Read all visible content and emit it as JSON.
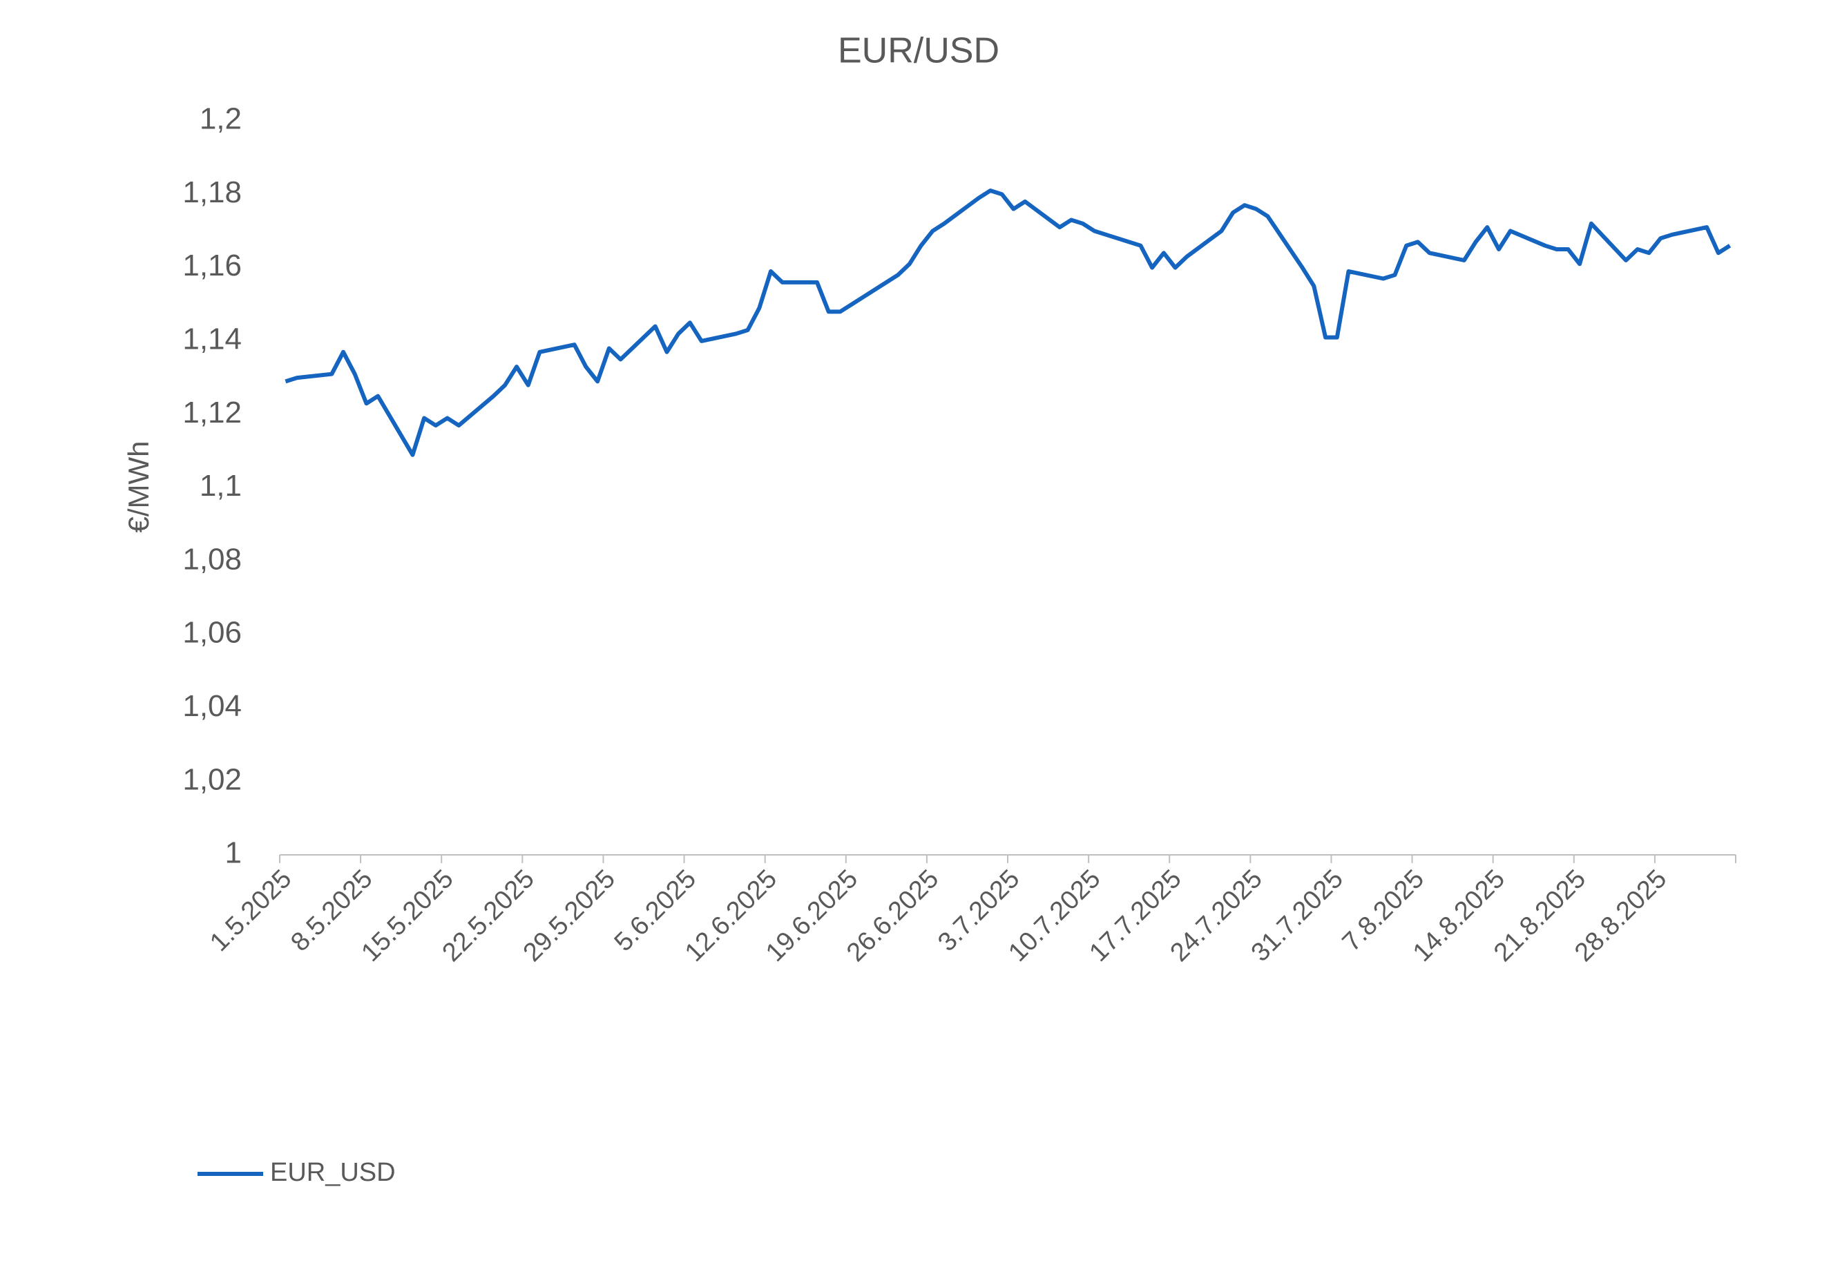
{
  "chart_data": {
    "type": "line",
    "title": "EUR/USD",
    "ylabel": "€/MWh",
    "x": [
      "1.5.2025",
      "2.5.2025",
      "5.5.2025",
      "6.5.2025",
      "7.5.2025",
      "8.5.2025",
      "9.5.2025",
      "12.5.2025",
      "13.5.2025",
      "14.5.2025",
      "15.5.2025",
      "16.5.2025",
      "19.5.2025",
      "20.5.2025",
      "21.5.2025",
      "22.5.2025",
      "23.5.2025",
      "26.5.2025",
      "27.5.2025",
      "28.5.2025",
      "29.5.2025",
      "30.5.2025",
      "2.6.2025",
      "3.6.2025",
      "4.6.2025",
      "5.6.2025",
      "6.6.2025",
      "9.6.2025",
      "10.6.2025",
      "11.6.2025",
      "12.6.2025",
      "13.6.2025",
      "16.6.2025",
      "17.6.2025",
      "18.6.2025",
      "19.6.2025",
      "20.6.2025",
      "23.6.2025",
      "24.6.2025",
      "25.6.2025",
      "26.6.2025",
      "27.6.2025",
      "30.6.2025",
      "1.7.2025",
      "2.7.2025",
      "3.7.2025",
      "4.7.2025",
      "7.7.2025",
      "8.7.2025",
      "9.7.2025",
      "10.7.2025",
      "11.7.2025",
      "14.7.2025",
      "15.7.2025",
      "16.7.2025",
      "17.7.2025",
      "18.7.2025",
      "21.7.2025",
      "22.7.2025",
      "23.7.2025",
      "24.7.2025",
      "25.7.2025",
      "28.7.2025",
      "29.7.2025",
      "30.7.2025",
      "31.7.2025",
      "1.8.2025",
      "4.8.2025",
      "5.8.2025",
      "6.8.2025",
      "7.8.2025",
      "8.8.2025",
      "11.8.2025",
      "12.8.2025",
      "13.8.2025",
      "14.8.2025",
      "15.8.2025",
      "18.8.2025",
      "19.8.2025",
      "20.8.2025",
      "21.8.2025",
      "22.8.2025",
      "25.8.2025",
      "26.8.2025",
      "27.8.2025",
      "28.8.2025",
      "29.8.2025",
      "1.9.2025",
      "2.9.2025",
      "3.9.2025"
    ],
    "series": [
      {
        "name": "EUR_USD",
        "color": "#1565c0",
        "values": [
          1.129,
          1.13,
          1.131,
          1.137,
          1.131,
          1.123,
          1.125,
          1.109,
          1.119,
          1.117,
          1.119,
          1.117,
          1.125,
          1.128,
          1.133,
          1.128,
          1.137,
          1.139,
          1.133,
          1.129,
          1.138,
          1.135,
          1.144,
          1.137,
          1.142,
          1.145,
          1.14,
          1.142,
          1.143,
          1.149,
          1.159,
          1.156,
          1.156,
          1.148,
          1.148,
          1.15,
          1.152,
          1.158,
          1.161,
          1.166,
          1.17,
          1.172,
          1.179,
          1.181,
          1.18,
          1.176,
          1.178,
          1.171,
          1.173,
          1.172,
          1.17,
          1.169,
          1.166,
          1.16,
          1.164,
          1.16,
          1.163,
          1.17,
          1.175,
          1.177,
          1.176,
          1.174,
          1.16,
          1.155,
          1.141,
          1.141,
          1.159,
          1.157,
          1.158,
          1.166,
          1.167,
          1.164,
          1.162,
          1.167,
          1.171,
          1.165,
          1.17,
          1.166,
          1.165,
          1.165,
          1.161,
          1.172,
          1.162,
          1.165,
          1.164,
          1.168,
          1.169,
          1.171,
          1.164,
          1.166
        ]
      }
    ],
    "xlim": [
      "1.5.2025",
      "4.9.2025"
    ],
    "xticks": [
      "1.5.2025",
      "8.5.2025",
      "15.5.2025",
      "22.5.2025",
      "29.5.2025",
      "5.6.2025",
      "12.6.2025",
      "19.6.2025",
      "26.6.2025",
      "3.7.2025",
      "10.7.2025",
      "17.7.2025",
      "24.7.2025",
      "31.7.2025",
      "7.8.2025",
      "14.8.2025",
      "21.8.2025",
      "28.8.2025"
    ],
    "ylim": [
      1,
      1.2
    ],
    "yticks": [
      1,
      {
        "value": 1.02,
        "label": "1,02"
      },
      {
        "value": 1.04,
        "label": "1,04"
      },
      {
        "value": 1.06,
        "label": "1,06"
      },
      {
        "value": 1.08,
        "label": "1,08"
      },
      {
        "value": 1.1,
        "label": "1,1"
      },
      {
        "value": 1.12,
        "label": "1,12"
      },
      {
        "value": 1.14,
        "label": "1,14"
      },
      {
        "value": 1.16,
        "label": "1,16"
      },
      {
        "value": 1.18,
        "label": "1,18"
      },
      {
        "value": 1.2,
        "label": "1,2"
      }
    ],
    "grid": false,
    "legend": "bottom-left"
  }
}
